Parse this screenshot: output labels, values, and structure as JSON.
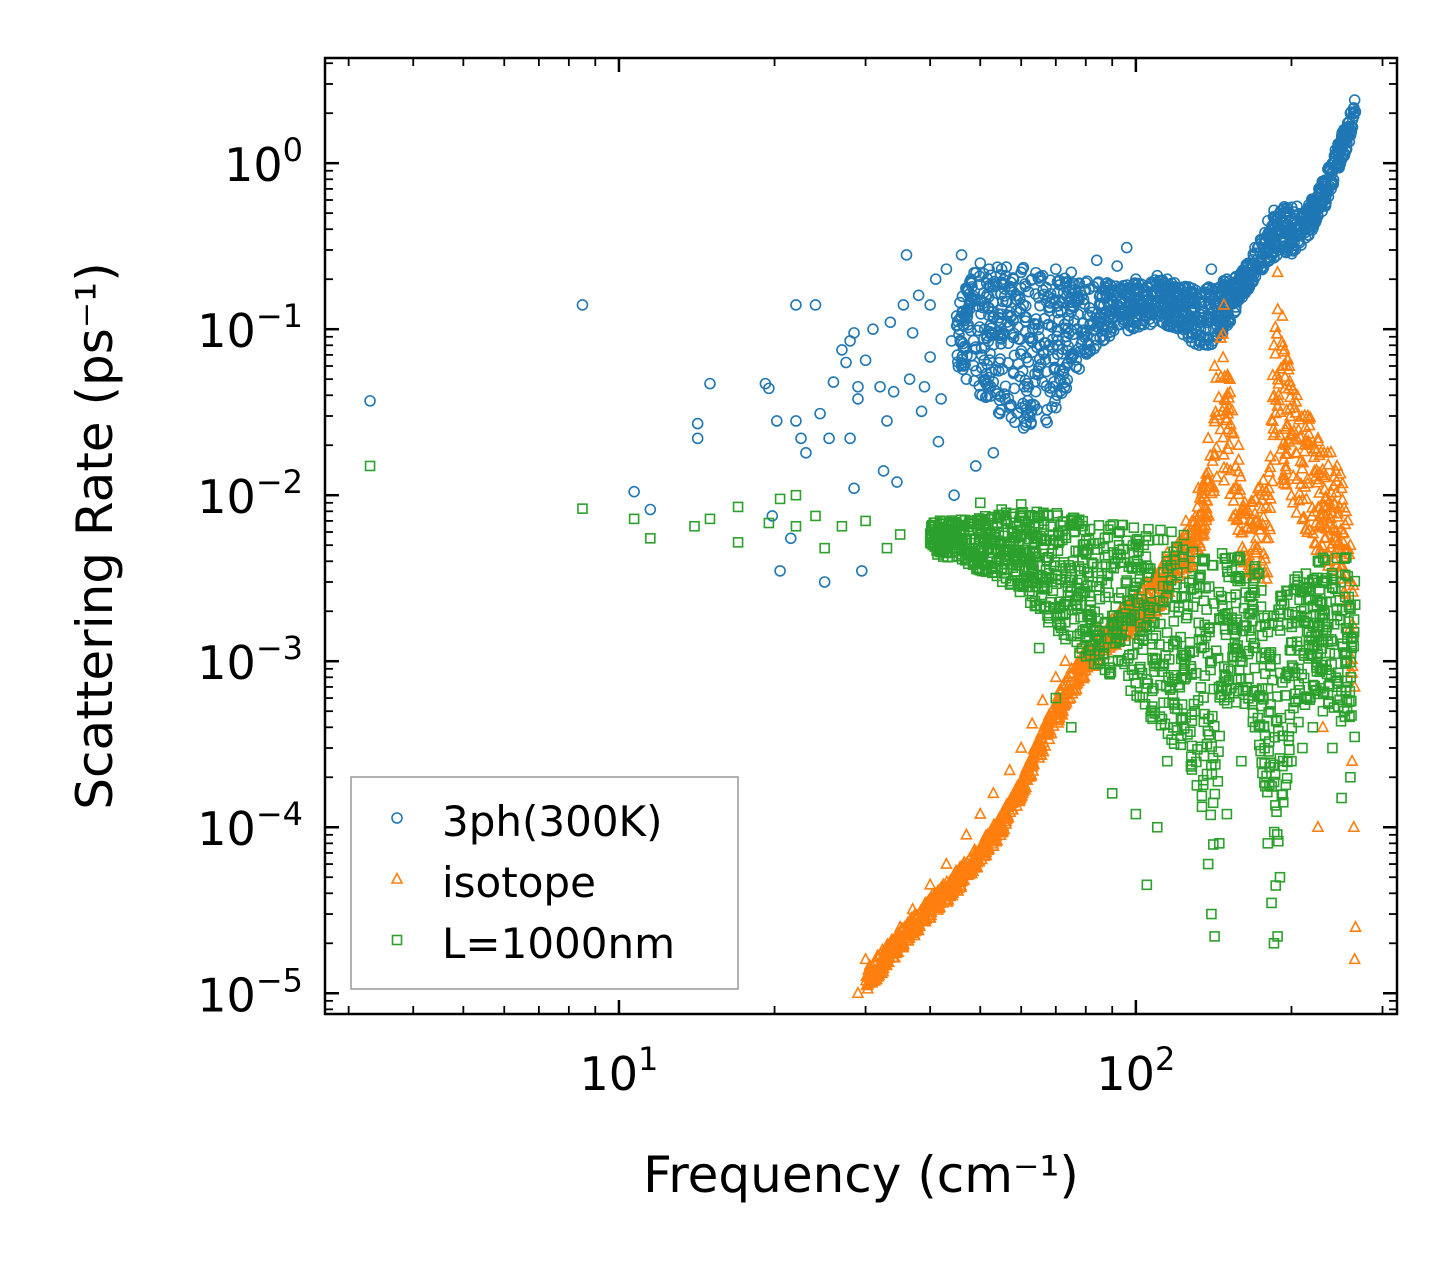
{
  "chart_data": {
    "type": "scatter",
    "xscale": "log",
    "yscale": "log",
    "xlim": [
      2.7,
      320
    ],
    "ylim": [
      7.5e-06,
      4.3
    ],
    "xlabel": "Frequency (cm⁻¹)",
    "ylabel": "Scattering Rate (ps⁻¹)",
    "x_tick_labels": [
      {
        "value": 10,
        "base": "10",
        "exp": "1"
      },
      {
        "value": 100,
        "base": "10",
        "exp": "2"
      }
    ],
    "y_tick_labels": [
      {
        "value": 1,
        "base": "10",
        "exp": "0"
      },
      {
        "value": 0.1,
        "base": "10",
        "exp": "−1"
      },
      {
        "value": 0.01,
        "base": "10",
        "exp": "−2"
      },
      {
        "value": 0.001,
        "base": "10",
        "exp": "−3"
      },
      {
        "value": 0.0001,
        "base": "10",
        "exp": "−4"
      },
      {
        "value": 1e-05,
        "base": "10",
        "exp": "−5"
      }
    ],
    "legend": {
      "position": "lower-left",
      "entries": [
        "3ph(300K)",
        "isotope",
        "L=1000nm"
      ]
    },
    "series": [
      {
        "name": "3ph(300K)",
        "marker": "circle",
        "color": "#1f77b4",
        "points": [
          [
            3.3,
            0.037
          ],
          [
            8.5,
            0.14
          ],
          [
            10.7,
            0.0105
          ],
          [
            11.5,
            0.0082
          ],
          [
            14.2,
            0.027
          ],
          [
            14.2,
            0.022
          ],
          [
            15.0,
            0.047
          ],
          [
            19.2,
            0.047
          ],
          [
            19.5,
            0.044
          ],
          [
            19.8,
            0.0075
          ],
          [
            20.2,
            0.028
          ],
          [
            20.5,
            0.0035
          ],
          [
            21.5,
            0.0055
          ],
          [
            22.0,
            0.14
          ],
          [
            22.0,
            0.028
          ],
          [
            22.5,
            0.022
          ],
          [
            23.0,
            0.018
          ],
          [
            24.0,
            0.14
          ],
          [
            24.5,
            0.031
          ],
          [
            25.0,
            0.003
          ],
          [
            25.5,
            0.022
          ],
          [
            26.0,
            0.048
          ],
          [
            27.0,
            0.075
          ],
          [
            27.5,
            0.063
          ],
          [
            28.0,
            0.085
          ],
          [
            28.0,
            0.022
          ],
          [
            28.5,
            0.095
          ],
          [
            28.5,
            0.011
          ],
          [
            29.0,
            0.045
          ],
          [
            29.0,
            0.038
          ],
          [
            29.5,
            0.0035
          ],
          [
            30.0,
            0.065
          ],
          [
            31.0,
            0.1
          ],
          [
            32.0,
            0.045
          ],
          [
            32.5,
            0.014
          ],
          [
            33.0,
            0.028
          ],
          [
            33.5,
            0.11
          ],
          [
            34.0,
            0.042
          ],
          [
            34.5,
            0.012
          ],
          [
            35.5,
            0.14
          ],
          [
            36.0,
            0.28
          ],
          [
            36.5,
            0.05
          ],
          [
            37.0,
            0.095
          ],
          [
            38.0,
            0.16
          ],
          [
            38.5,
            0.032
          ],
          [
            39.0,
            0.045
          ],
          [
            40.0,
            0.14
          ],
          [
            40.0,
            0.068
          ],
          [
            41.0,
            0.2
          ],
          [
            41.5,
            0.021
          ],
          [
            42.0,
            0.038
          ],
          [
            43.0,
            0.23
          ],
          [
            44.0,
            0.085
          ],
          [
            44.5,
            0.01
          ],
          [
            45.0,
            0.12
          ],
          [
            46.0,
            0.28
          ],
          [
            47.0,
            0.05
          ],
          [
            48.0,
            0.2
          ],
          [
            49.0,
            0.015
          ],
          [
            50.0,
            0.25
          ],
          [
            51.0,
            0.1
          ],
          [
            52.0,
            0.23
          ],
          [
            53.0,
            0.018
          ],
          [
            55.0,
            0.23
          ],
          [
            56.0,
            0.21
          ],
          [
            58.0,
            0.2
          ],
          [
            60.0,
            0.22
          ],
          [
            63.0,
            0.2
          ],
          [
            66.0,
            0.21
          ],
          [
            70.0,
            0.23
          ],
          [
            75.0,
            0.22
          ],
          [
            80.0,
            0.19
          ],
          [
            84.0,
            0.26
          ],
          [
            88.0,
            0.19
          ],
          [
            92.0,
            0.24
          ],
          [
            96.0,
            0.31
          ],
          [
            100.0,
            0.2
          ],
          [
            105.0,
            0.18
          ],
          [
            110.0,
            0.21
          ],
          [
            115.0,
            0.2
          ],
          [
            120.0,
            0.17
          ],
          [
            125.0,
            0.15
          ],
          [
            130.0,
            0.15
          ],
          [
            135.0,
            0.09
          ],
          [
            140.0,
            0.23
          ],
          [
            145.0,
            0.13
          ],
          [
            150.0,
            0.2
          ],
          [
            160.0,
            0.22
          ],
          [
            170.0,
            0.31
          ],
          [
            180.0,
            0.45
          ],
          [
            185.0,
            0.52
          ],
          [
            190.0,
            0.5
          ],
          [
            195.0,
            0.45
          ],
          [
            200.0,
            0.4
          ],
          [
            205.0,
            0.55
          ],
          [
            210.0,
            0.5
          ],
          [
            220.0,
            0.6
          ],
          [
            230.0,
            0.75
          ],
          [
            240.0,
            1.0
          ],
          [
            250.0,
            1.4
          ],
          [
            260.0,
            2.0
          ],
          [
            265.0,
            2.4
          ]
        ],
        "band": {
          "x": [
            45,
            50,
            55,
            60,
            65,
            70,
            75,
            80,
            90,
            100,
            110,
            120,
            130,
            140,
            150,
            160,
            170,
            180,
            190,
            200,
            210,
            220,
            230,
            240,
            250,
            260,
            266
          ],
          "low": [
            0.06,
            0.04,
            0.03,
            0.025,
            0.025,
            0.03,
            0.045,
            0.07,
            0.09,
            0.1,
            0.11,
            0.1,
            0.08,
            0.08,
            0.1,
            0.15,
            0.2,
            0.25,
            0.28,
            0.28,
            0.32,
            0.4,
            0.5,
            0.7,
            1.0,
            1.4,
            2.0
          ],
          "high": [
            0.2,
            0.23,
            0.25,
            0.24,
            0.22,
            0.21,
            0.2,
            0.2,
            0.19,
            0.19,
            0.2,
            0.19,
            0.18,
            0.18,
            0.2,
            0.22,
            0.3,
            0.42,
            0.55,
            0.55,
            0.5,
            0.62,
            0.8,
            1.1,
            1.5,
            2.0,
            2.4
          ]
        }
      },
      {
        "name": "isotope",
        "marker": "triangle",
        "color": "#ff7f0e",
        "points": [
          [
            29.0,
            1e-05
          ],
          [
            30.0,
            1.6e-05
          ],
          [
            31.0,
            1.2e-05
          ],
          [
            33.0,
            1.8e-05
          ],
          [
            35.0,
            2.5e-05
          ],
          [
            37.0,
            3.2e-05
          ],
          [
            40.0,
            4.5e-05
          ],
          [
            43.0,
            6e-05
          ],
          [
            47.0,
            9e-05
          ],
          [
            50.0,
            0.00012
          ],
          [
            53.0,
            0.00016
          ],
          [
            57.0,
            0.00022
          ],
          [
            60.0,
            0.0003
          ],
          [
            63.0,
            0.00042
          ],
          [
            66.0,
            0.00058
          ],
          [
            70.0,
            0.0008
          ],
          [
            73.0,
            0.001
          ],
          [
            78.0,
            0.0012
          ],
          [
            85.0,
            0.0016
          ],
          [
            95.0,
            0.0022
          ],
          [
            105.0,
            0.003
          ],
          [
            115.0,
            0.0045
          ],
          [
            125.0,
            0.007
          ],
          [
            132.0,
            0.011
          ],
          [
            138.0,
            0.022
          ],
          [
            142.0,
            0.06
          ],
          [
            148.0,
            0.14
          ],
          [
            152.0,
            0.05
          ],
          [
            158.0,
            0.02
          ],
          [
            165.0,
            0.008
          ],
          [
            170.0,
            0.005
          ],
          [
            175.0,
            0.003
          ],
          [
            180.0,
            0.01
          ],
          [
            185.0,
            0.08
          ],
          [
            188.0,
            0.22
          ],
          [
            192.0,
            0.12
          ],
          [
            198.0,
            0.06
          ],
          [
            205.0,
            0.04
          ],
          [
            215.0,
            0.03
          ],
          [
            225.0,
            0.022
          ],
          [
            235.0,
            0.018
          ],
          [
            245.0,
            0.015
          ],
          [
            250.0,
            0.011
          ],
          [
            255.0,
            0.008
          ],
          [
            260.0,
            0.005
          ],
          [
            265.0,
            0.0007
          ],
          [
            262.0,
            0.00025
          ],
          [
            264.0,
            0.0001
          ],
          [
            266.0,
            2.5e-05
          ],
          [
            265.0,
            1.6e-05
          ],
          [
            230.0,
            0.0004
          ],
          [
            225.0,
            0.0001
          ]
        ],
        "band": {
          "x": [
            30,
            35,
            40,
            45,
            50,
            55,
            60,
            65,
            70,
            75,
            80,
            90,
            100,
            110,
            120,
            130,
            138,
            142,
            146,
            150,
            155,
            160,
            170,
            180,
            185,
            188,
            192,
            200,
            210,
            220,
            230,
            240,
            250,
            258,
            264
          ],
          "low": [
            1e-05,
            1.8e-05,
            2.8e-05,
            4e-05,
            6e-05,
            9e-05,
            0.00015,
            0.00025,
            0.0004,
            0.0006,
            0.0008,
            0.0012,
            0.0015,
            0.002,
            0.003,
            0.004,
            0.006,
            0.01,
            0.015,
            0.01,
            0.006,
            0.004,
            0.003,
            0.003,
            0.01,
            0.02,
            0.012,
            0.008,
            0.006,
            0.005,
            0.004,
            0.0035,
            0.003,
            0.0015,
            0.0005
          ],
          "high": [
            1.4e-05,
            2.4e-05,
            3.8e-05,
            5.5e-05,
            8e-05,
            0.00012,
            0.0002,
            0.00035,
            0.0006,
            0.0009,
            0.0012,
            0.0018,
            0.0025,
            0.0035,
            0.005,
            0.008,
            0.015,
            0.04,
            0.12,
            0.06,
            0.03,
            0.015,
            0.01,
            0.015,
            0.08,
            0.2,
            0.1,
            0.05,
            0.035,
            0.028,
            0.022,
            0.018,
            0.014,
            0.008,
            0.003
          ]
        }
      },
      {
        "name": "L=1000nm",
        "marker": "square",
        "color": "#2ca02c",
        "points": [
          [
            3.3,
            0.015
          ],
          [
            8.5,
            0.0083
          ],
          [
            10.7,
            0.0072
          ],
          [
            11.5,
            0.0055
          ],
          [
            14.0,
            0.0065
          ],
          [
            15.0,
            0.0072
          ],
          [
            17.0,
            0.0085
          ],
          [
            17.0,
            0.0052
          ],
          [
            19.5,
            0.0068
          ],
          [
            20.5,
            0.0095
          ],
          [
            22.0,
            0.01
          ],
          [
            22.0,
            0.0065
          ],
          [
            24.0,
            0.0075
          ],
          [
            25.0,
            0.0048
          ],
          [
            27.0,
            0.0065
          ],
          [
            30.0,
            0.007
          ],
          [
            33.0,
            0.0048
          ],
          [
            35.0,
            0.0058
          ],
          [
            40.0,
            0.0052
          ],
          [
            45.0,
            0.0062
          ],
          [
            50.0,
            0.009
          ],
          [
            55.0,
            0.0082
          ],
          [
            60.0,
            0.0088
          ],
          [
            65.0,
            0.0012
          ],
          [
            70.0,
            0.0006
          ],
          [
            75.0,
            0.0004
          ],
          [
            80.0,
            0.0015
          ],
          [
            90.0,
            0.00016
          ],
          [
            100.0,
            0.00012
          ],
          [
            105.0,
            4.5e-05
          ],
          [
            110.0,
            0.0001
          ],
          [
            115.0,
            0.00025
          ],
          [
            120.0,
            0.0004
          ],
          [
            125.0,
            0.0008
          ],
          [
            130.0,
            0.0005
          ],
          [
            135.0,
            0.00018
          ],
          [
            138.0,
            6e-05
          ],
          [
            140.0,
            3e-05
          ],
          [
            142.0,
            2.2e-05
          ],
          [
            145.0,
            8e-05
          ],
          [
            150.0,
            0.00012
          ],
          [
            160.0,
            0.00025
          ],
          [
            170.0,
            0.0004
          ],
          [
            180.0,
            8e-05
          ],
          [
            183.0,
            3.5e-05
          ],
          [
            185.0,
            2e-05
          ],
          [
            188.0,
            2.2e-05
          ],
          [
            190.0,
            5e-05
          ],
          [
            195.0,
            0.00018
          ],
          [
            200.0,
            0.00025
          ],
          [
            210.0,
            0.0003
          ],
          [
            220.0,
            0.0004
          ],
          [
            230.0,
            0.0005
          ],
          [
            240.0,
            0.0003
          ],
          [
            250.0,
            0.00015
          ],
          [
            260.0,
            0.0002
          ],
          [
            265.0,
            0.00035
          ]
        ],
        "band": {
          "x": [
            40,
            45,
            50,
            55,
            60,
            65,
            70,
            75,
            80,
            90,
            100,
            110,
            120,
            130,
            136,
            140,
            145,
            150,
            160,
            170,
            178,
            183,
            186,
            190,
            200,
            210,
            220,
            230,
            240,
            250,
            260,
            266
          ],
          "low": [
            0.0045,
            0.004,
            0.0035,
            0.003,
            0.0025,
            0.002,
            0.0015,
            0.0012,
            0.001,
            0.0008,
            0.0006,
            0.0004,
            0.0003,
            0.0002,
            0.0001,
            5e-05,
            0.0002,
            0.0005,
            0.0006,
            0.0004,
            0.00015,
            5e-05,
            3e-05,
            0.0001,
            0.0003,
            0.0005,
            0.0006,
            0.0006,
            0.0005,
            0.0004,
            0.0004,
            0.0005
          ],
          "high": [
            0.007,
            0.0072,
            0.0075,
            0.0078,
            0.008,
            0.008,
            0.0078,
            0.0075,
            0.0072,
            0.007,
            0.0068,
            0.0065,
            0.006,
            0.0055,
            0.005,
            0.004,
            0.0045,
            0.0048,
            0.0045,
            0.004,
            0.0032,
            0.0025,
            0.002,
            0.0025,
            0.003,
            0.0035,
            0.004,
            0.0043,
            0.0045,
            0.0045,
            0.004,
            0.003
          ]
        }
      }
    ]
  }
}
